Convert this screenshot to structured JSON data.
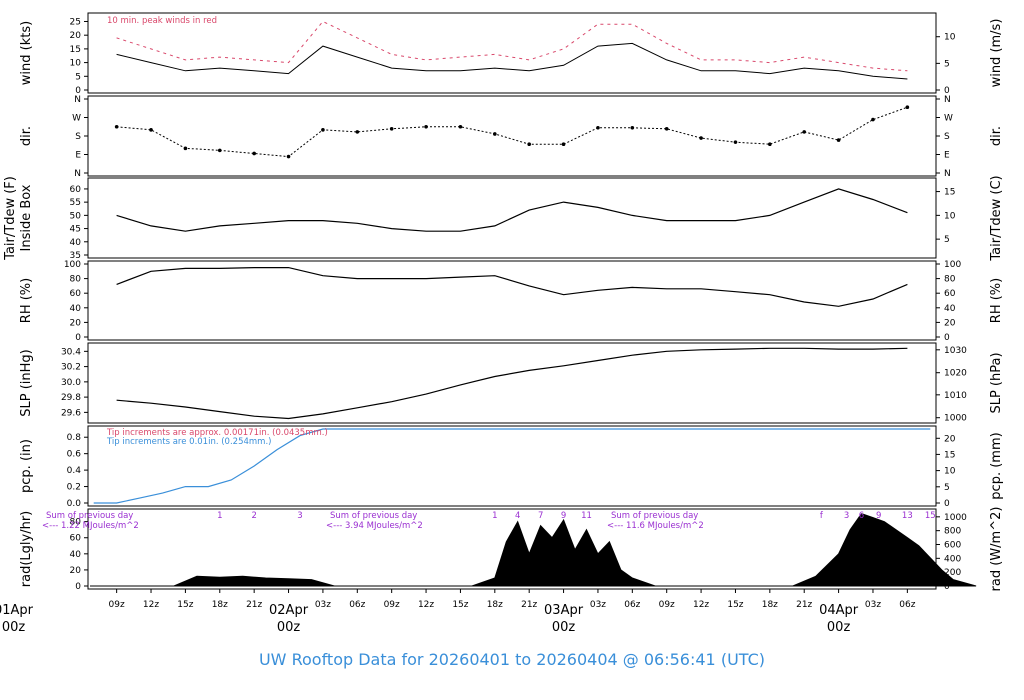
{
  "title": "UW Rooftop Data for 20260401  to  20260404 @ 06:56:41  (UTC)",
  "colors": {
    "text": "#000000",
    "red": "#d9486b",
    "blue": "#3a8fd9",
    "purple": "#9a2fd1",
    "frame": "#000000"
  },
  "chart_data": [
    {
      "type": "line",
      "panel": "wind",
      "ylabel_left": "wind (kts)",
      "ylabel_right": "wind (m/s)",
      "ylim": [
        0,
        27
      ],
      "yticks": [
        "0",
        "5",
        "10",
        "15",
        "20",
        "25"
      ],
      "y2ticks": [
        "0",
        "5",
        "10"
      ],
      "y2values": [
        0,
        9.72,
        19.44
      ],
      "annotation": "10 min. peak winds in red",
      "x": [
        9,
        12,
        15,
        18,
        21,
        24,
        27,
        30,
        33,
        36,
        39,
        42,
        45,
        48,
        51,
        54,
        57,
        60,
        63,
        66,
        69,
        72,
        75,
        78
      ],
      "series": [
        {
          "values": [
            13,
            10,
            7,
            8,
            7,
            6,
            16,
            12,
            8,
            7,
            7,
            8,
            7,
            9,
            16,
            17,
            11,
            7,
            7,
            6,
            8,
            7,
            5,
            4
          ]
        },
        {
          "values": [
            19,
            15,
            11,
            12,
            11,
            10,
            25,
            19,
            13,
            11,
            12,
            13,
            11,
            15,
            24,
            24,
            17,
            11,
            11,
            10,
            12,
            10,
            8,
            7
          ],
          "color": "red"
        }
      ]
    },
    {
      "type": "scatter",
      "panel": "direction",
      "ylabel_left": "dir.",
      "ylabel_right": "dir.",
      "yticks": [
        "N",
        "E",
        "S",
        "W",
        "N"
      ],
      "ylim": [
        0,
        360
      ],
      "x": [
        9,
        12,
        15,
        18,
        21,
        24,
        27,
        30,
        33,
        36,
        39,
        42,
        45,
        48,
        51,
        54,
        57,
        60,
        63,
        66,
        69,
        72,
        75,
        78
      ],
      "values": [
        225,
        210,
        120,
        110,
        95,
        80,
        210,
        200,
        215,
        225,
        225,
        190,
        140,
        140,
        220,
        220,
        215,
        170,
        150,
        140,
        200,
        160,
        260,
        320
      ]
    },
    {
      "type": "line",
      "panel": "temperature",
      "ylabel_left": "Tair/Tdew (F)",
      "ylabel_left2": "Inside Box",
      "ylabel_right": "Tair/Tdew (C)",
      "ylim": [
        35,
        63
      ],
      "yticks": [
        "35",
        "40",
        "45",
        "50",
        "55",
        "60"
      ],
      "y2ticks": [
        "5",
        "10",
        "15"
      ],
      "y2values": [
        41,
        50,
        59
      ],
      "x": [
        9,
        12,
        15,
        18,
        21,
        24,
        27,
        30,
        33,
        36,
        39,
        42,
        45,
        48,
        51,
        54,
        57,
        60,
        63,
        66,
        69,
        72,
        75,
        78
      ],
      "values": [
        50,
        46,
        44,
        46,
        47,
        48,
        48,
        47,
        45,
        44,
        44,
        46,
        52,
        55,
        53,
        50,
        48,
        48,
        48,
        50,
        55,
        60,
        56,
        51
      ]
    },
    {
      "type": "line",
      "panel": "humidity",
      "ylabel_left": "RH (%)",
      "ylabel_right": "RH (%)",
      "ylim": [
        0,
        100
      ],
      "yticks": [
        "0",
        "20",
        "40",
        "60",
        "80",
        "100"
      ],
      "x": [
        9,
        12,
        15,
        18,
        21,
        24,
        27,
        30,
        33,
        36,
        39,
        42,
        45,
        48,
        51,
        54,
        57,
        60,
        63,
        66,
        69,
        72,
        75,
        78
      ],
      "values": [
        72,
        90,
        94,
        94,
        95,
        95,
        84,
        80,
        80,
        80,
        82,
        84,
        70,
        58,
        64,
        68,
        66,
        66,
        62,
        58,
        48,
        42,
        52,
        72
      ]
    },
    {
      "type": "line",
      "panel": "pressure",
      "ylabel_left": "SLP (inHg)",
      "ylabel_right": "SLP (hPa)",
      "ylim": [
        29.5,
        30.47
      ],
      "yticks": [
        "29.6",
        "29.8",
        "30.0",
        "30.2",
        "30.4"
      ],
      "y2ticks": [
        "1000",
        "1010",
        "1020",
        "1030"
      ],
      "y2values": [
        29.53,
        29.83,
        30.12,
        30.42
      ],
      "x": [
        9,
        12,
        15,
        18,
        21,
        24,
        27,
        30,
        33,
        36,
        39,
        42,
        45,
        48,
        51,
        54,
        57,
        60,
        63,
        66,
        69,
        72,
        75,
        78
      ],
      "values": [
        29.76,
        29.72,
        29.67,
        29.61,
        29.55,
        29.52,
        29.58,
        29.66,
        29.74,
        29.84,
        29.96,
        30.07,
        30.15,
        30.21,
        30.28,
        30.35,
        30.4,
        30.42,
        30.43,
        30.44,
        30.44,
        30.43,
        30.43,
        30.44
      ]
    },
    {
      "type": "line",
      "panel": "precipitation",
      "ylabel_left": "pcp. (in)",
      "ylabel_right": "pcp. (mm)",
      "ylim": [
        0,
        0.9
      ],
      "yticks": [
        "0.0",
        "0.2",
        "0.4",
        "0.6",
        "0.8"
      ],
      "y2ticks": [
        "0",
        "5",
        "10",
        "15",
        "20"
      ],
      "y2values": [
        0,
        0.197,
        0.394,
        0.591,
        0.787
      ],
      "annotation_red": "Tip increments are approx. 0.00171in. (0.0435mm.)",
      "annotation_blue": "Tip increments are 0.01in. (0.254mm.)",
      "x": [
        7,
        9,
        11,
        13,
        15,
        17,
        19,
        21,
        23,
        25,
        27,
        29,
        32,
        80
      ],
      "values": [
        0,
        0,
        0.06,
        0.12,
        0.2,
        0.2,
        0.28,
        0.45,
        0.65,
        0.82,
        0.9,
        0.9,
        0.9,
        0.9
      ]
    },
    {
      "type": "area",
      "panel": "radiation",
      "ylabel_left": "rad(Lgly/hr)",
      "ylabel_right": "rad (W/m^2)",
      "ylim": [
        0,
        92
      ],
      "yticks": [
        "0",
        "20",
        "40",
        "60",
        "80"
      ],
      "y2ticks": [
        "0",
        "200",
        "400",
        "600",
        "800",
        "1000"
      ],
      "y2values": [
        0,
        17.2,
        34.4,
        51.6,
        68.8,
        86.0
      ],
      "x": [
        14,
        16,
        18,
        20,
        22,
        24,
        26,
        28,
        40,
        42,
        43,
        44,
        45,
        46,
        47,
        48,
        49,
        50,
        51,
        52,
        53,
        54,
        56,
        68,
        70,
        72,
        73,
        74,
        75,
        76,
        77,
        78,
        79,
        80,
        81,
        82,
        84
      ],
      "values": [
        0,
        12,
        11,
        12,
        10,
        9,
        8,
        0,
        0,
        10,
        55,
        80,
        40,
        75,
        60,
        82,
        45,
        70,
        40,
        55,
        20,
        10,
        0,
        0,
        12,
        40,
        70,
        90,
        85,
        80,
        70,
        60,
        50,
        35,
        20,
        8,
        0
      ],
      "notes": [
        {
          "line1": "Sum of previous day",
          "line2": "<--- 1.22 MJoules/m^2"
        },
        {
          "line1": "Sum of previous day",
          "line2": "<--- 3.94 MJoules/m^2"
        },
        {
          "line1": "Sum of previous day",
          "line2": "<--- 11.6 MJoules/m^2"
        }
      ],
      "marks": [
        {
          "label": "1",
          "x": 18
        },
        {
          "label": "2",
          "x": 21
        },
        {
          "label": "3",
          "x": 25
        },
        {
          "label": "1",
          "x": 42
        },
        {
          "label": "4",
          "x": 44
        },
        {
          "label": "7",
          "x": 46
        },
        {
          "label": "9",
          "x": 48
        },
        {
          "label": "11",
          "x": 50
        },
        {
          "label": "f",
          "x": 70.5
        },
        {
          "label": "3",
          "x": 72.7
        },
        {
          "label": "6",
          "x": 74
        },
        {
          "label": "9",
          "x": 75.5
        },
        {
          "label": "13",
          "x": 78
        },
        {
          "label": "15",
          "x": 80
        }
      ]
    }
  ],
  "x_axis": {
    "ticks": [
      "09z",
      "12z",
      "15z",
      "18z",
      "21z",
      "02Apr",
      "03z",
      "06z",
      "09z",
      "12z",
      "15z",
      "18z",
      "21z",
      "03Apr",
      "03z",
      "06z",
      "09z",
      "12z",
      "15z",
      "18z",
      "21z",
      "04Apr",
      "03z",
      "06z"
    ],
    "tick_hours": [
      9,
      12,
      15,
      18,
      21,
      24,
      27,
      30,
      33,
      36,
      39,
      42,
      45,
      48,
      51,
      54,
      57,
      60,
      63,
      66,
      69,
      72,
      75,
      78
    ],
    "day_labels": [
      {
        "label": "01Apr",
        "sub": "00z",
        "hour": 0
      },
      {
        "label": "02Apr",
        "sub": "00z",
        "hour": 24
      },
      {
        "label": "03Apr",
        "sub": "00z",
        "hour": 48
      },
      {
        "label": "04Apr",
        "sub": "00z",
        "hour": 72
      }
    ],
    "range_hours": [
      6.5,
      80.5
    ]
  }
}
